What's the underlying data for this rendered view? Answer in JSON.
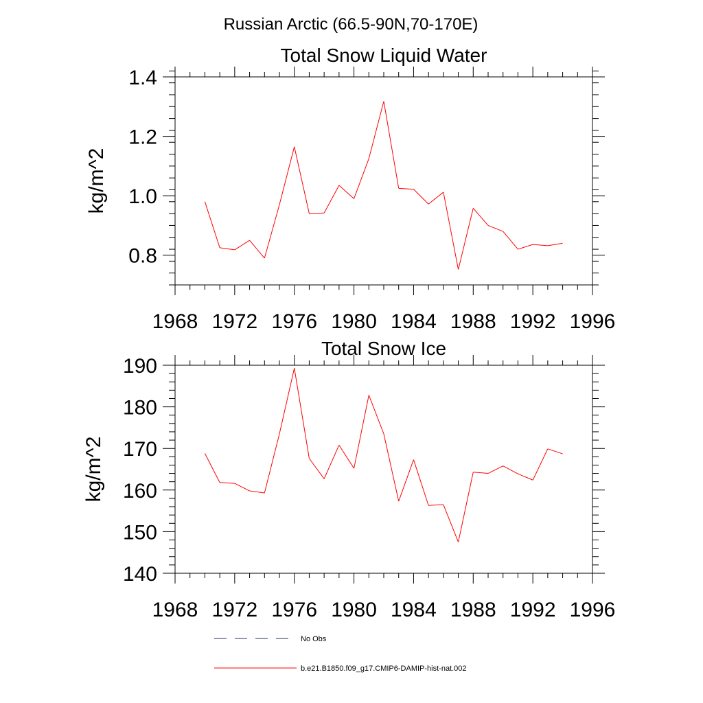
{
  "figure": {
    "title": "Russian Arctic (66.5-90N,70-170E)"
  },
  "legend": {
    "entries": [
      {
        "label": "No Obs",
        "style": "dashed",
        "color": "#203060"
      },
      {
        "label": "b.e21.B1850.f09_g17.CMIP6-DAMIP-hist-nat.002",
        "style": "solid",
        "color": "#ff0000"
      }
    ]
  },
  "chart_data": [
    {
      "type": "line",
      "title": "Total Snow Liquid Water",
      "xlabel": "",
      "ylabel": "kg/m^2",
      "xlim": [
        1968,
        1996
      ],
      "ylim": [
        0.7,
        1.4
      ],
      "x_ticks": [
        1968,
        1972,
        1976,
        1980,
        1984,
        1988,
        1992,
        1996
      ],
      "y_ticks": [
        0.8,
        1.0,
        1.2,
        1.4
      ],
      "y_tick_labels": [
        "0.8",
        "1.0",
        "1.2",
        "1.4"
      ],
      "y_minor_step": 0.04,
      "grid": false,
      "series": [
        {
          "name": "b.e21.B1850.f09_g17.CMIP6-DAMIP-hist-nat.002",
          "color": "#ff0000",
          "x": [
            1970,
            1971,
            1972,
            1973,
            1974,
            1975,
            1976,
            1977,
            1978,
            1979,
            1980,
            1981,
            1982,
            1983,
            1984,
            1985,
            1986,
            1987,
            1988,
            1989,
            1990,
            1991,
            1992,
            1993,
            1994
          ],
          "y": [
            0.98,
            0.825,
            0.818,
            0.85,
            0.79,
            0.97,
            1.165,
            0.94,
            0.942,
            1.035,
            0.99,
            1.125,
            1.318,
            1.025,
            1.022,
            0.972,
            1.012,
            0.752,
            0.958,
            0.9,
            0.88,
            0.82,
            0.836,
            0.832,
            0.84
          ]
        }
      ]
    },
    {
      "type": "line",
      "title": "Total Snow Ice",
      "xlabel": "",
      "ylabel": "kg/m^2",
      "xlim": [
        1968,
        1996
      ],
      "ylim": [
        140,
        190
      ],
      "x_ticks": [
        1968,
        1972,
        1976,
        1980,
        1984,
        1988,
        1992,
        1996
      ],
      "y_ticks": [
        140,
        150,
        160,
        170,
        180,
        190
      ],
      "y_tick_labels": [
        "140",
        "150",
        "160",
        "170",
        "180",
        "190"
      ],
      "y_minor_step": 2,
      "grid": false,
      "series": [
        {
          "name": "b.e21.B1850.f09_g17.CMIP6-DAMIP-hist-nat.002",
          "color": "#ff0000",
          "x": [
            1970,
            1971,
            1972,
            1973,
            1974,
            1975,
            1976,
            1977,
            1978,
            1979,
            1980,
            1981,
            1982,
            1983,
            1984,
            1985,
            1986,
            1987,
            1988,
            1989,
            1990,
            1991,
            1992,
            1993,
            1994
          ],
          "y": [
            168.8,
            161.8,
            161.6,
            159.8,
            159.3,
            173.5,
            189.3,
            167.6,
            162.7,
            170.8,
            165.2,
            182.8,
            173.5,
            157.3,
            167.3,
            156.3,
            156.5,
            147.5,
            164.3,
            164.0,
            165.8,
            163.9,
            162.4,
            169.9,
            168.7
          ]
        }
      ]
    }
  ]
}
